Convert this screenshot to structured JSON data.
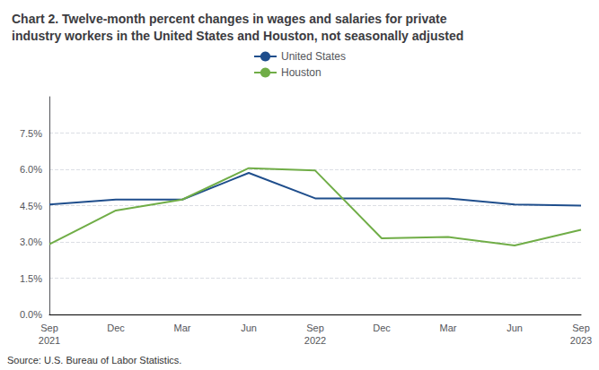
{
  "chart_data": {
    "type": "line",
    "title": "Chart 2. Twelve-month percent changes in wages and salaries for private\nindustry workers in the United States and Houston, not seasonally adjusted",
    "annotations": [
      "Source: U.S. Bureau of Labor Statistics."
    ],
    "categories": [
      "Sep\n2021",
      "Dec",
      "Mar",
      "Jun",
      "Sep\n2022",
      "Dec",
      "Mar",
      "Jun",
      "Sep\n2023"
    ],
    "series": [
      {
        "name": "United States",
        "color": "#1f4e8c",
        "values": [
          4.55,
          4.75,
          4.75,
          5.85,
          4.8,
          4.8,
          4.8,
          4.55,
          4.5
        ]
      },
      {
        "name": "Houston",
        "color": "#70ad47",
        "values": [
          2.9,
          4.3,
          4.75,
          6.05,
          5.95,
          3.15,
          3.2,
          2.85,
          3.5
        ]
      }
    ],
    "ylim": [
      0.0,
      9.0
    ],
    "yticks": [
      {
        "value": 0.0,
        "label": "0.0%"
      },
      {
        "value": 1.5,
        "label": "1.5%"
      },
      {
        "value": 3.0,
        "label": "3.0%"
      },
      {
        "value": 4.5,
        "label": "4.5%"
      },
      {
        "value": 6.0,
        "label": "6.0%"
      },
      {
        "value": 7.5,
        "label": "7.5%"
      }
    ],
    "grid": true,
    "legend": "top"
  }
}
